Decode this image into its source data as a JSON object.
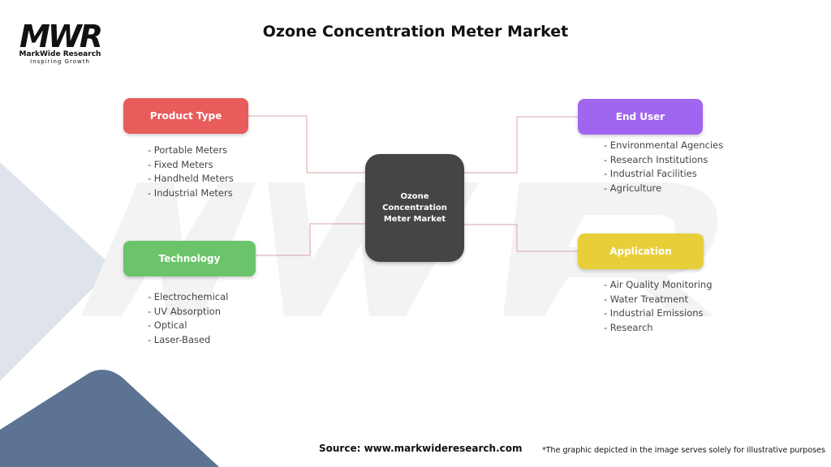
{
  "title": "Ozone Concentration Meter Market",
  "logo": {
    "mark": "MWR",
    "name": "MarkWide Research",
    "tagline": "Inspiring Growth"
  },
  "watermark": "MWR",
  "center": {
    "label": "Ozone Concentration Meter Market"
  },
  "categories": [
    {
      "label": "Product Type",
      "color": "#e85c5c",
      "items": [
        "- Portable Meters",
        "- Fixed Meters",
        "- Handheld Meters",
        "- Industrial Meters"
      ]
    },
    {
      "label": "Technology",
      "color": "#6cc46a",
      "items": [
        "- Electrochemical",
        "- UV Absorption",
        "- Optical",
        "- Laser-Based"
      ]
    },
    {
      "label": "End User",
      "color": "#a066f0",
      "items": [
        "- Environmental Agencies",
        "- Research Institutions",
        "- Industrial Facilities",
        "- Agriculture"
      ]
    },
    {
      "label": "Application",
      "color": "#e8cf3a",
      "items": [
        "- Air Quality Monitoring",
        "- Water Treatment",
        "- Industrial Emissions",
        "- Research"
      ]
    }
  ],
  "connector_color": "#dba3a3",
  "source": "Source: www.markwideresearch.com",
  "note": "*The graphic depicted in the image serves solely for illustrative purposes"
}
